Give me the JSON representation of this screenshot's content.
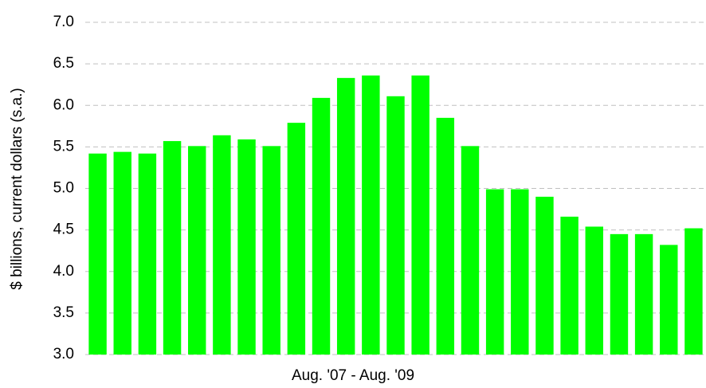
{
  "chart_data": {
    "type": "bar",
    "xlabel": "Aug. '07 - Aug. '09",
    "ylabel": "$ billions, current dollars (s.a.)",
    "categories": [
      null,
      null,
      null,
      null,
      null,
      null,
      null,
      null,
      null,
      null,
      null,
      null,
      null,
      null,
      null,
      null,
      null,
      null,
      null,
      null,
      null,
      null,
      null,
      null,
      null
    ],
    "values": [
      5.42,
      5.44,
      5.42,
      5.57,
      5.51,
      5.64,
      5.59,
      5.51,
      5.79,
      6.09,
      6.33,
      6.36,
      6.11,
      6.36,
      5.85,
      5.51,
      4.99,
      4.99,
      4.9,
      4.66,
      4.54,
      4.45,
      4.45,
      4.32,
      4.52
    ],
    "color": "#00ff00",
    "ylim": [
      3,
      7
    ],
    "yticks": [
      {
        "value": 3,
        "label": "3.0"
      },
      {
        "value": 3.5,
        "label": "3.5"
      },
      {
        "value": 4,
        "label": "4.0"
      },
      {
        "value": 4.5,
        "label": "4.5"
      },
      {
        "value": 5,
        "label": "5.0"
      },
      {
        "value": 5.5,
        "label": "5.5"
      },
      {
        "value": 6,
        "label": "6.0"
      },
      {
        "value": 6.5,
        "label": "6.5"
      },
      {
        "value": 7,
        "label": "7.0"
      }
    ],
    "grid": true
  }
}
